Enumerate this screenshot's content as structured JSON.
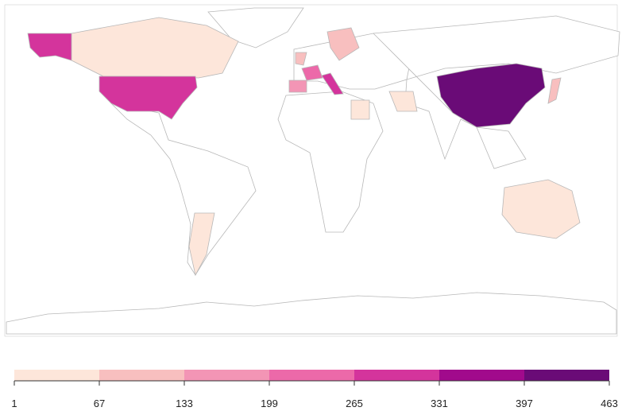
{
  "legend": {
    "ticks": [
      1,
      67,
      133,
      199,
      265,
      331,
      397,
      463
    ],
    "colors": [
      "#fde6da",
      "#f8bfbf",
      "#f395b5",
      "#ec69a9",
      "#d4349c",
      "#a10a8c",
      "#6a0b77"
    ]
  }
}
